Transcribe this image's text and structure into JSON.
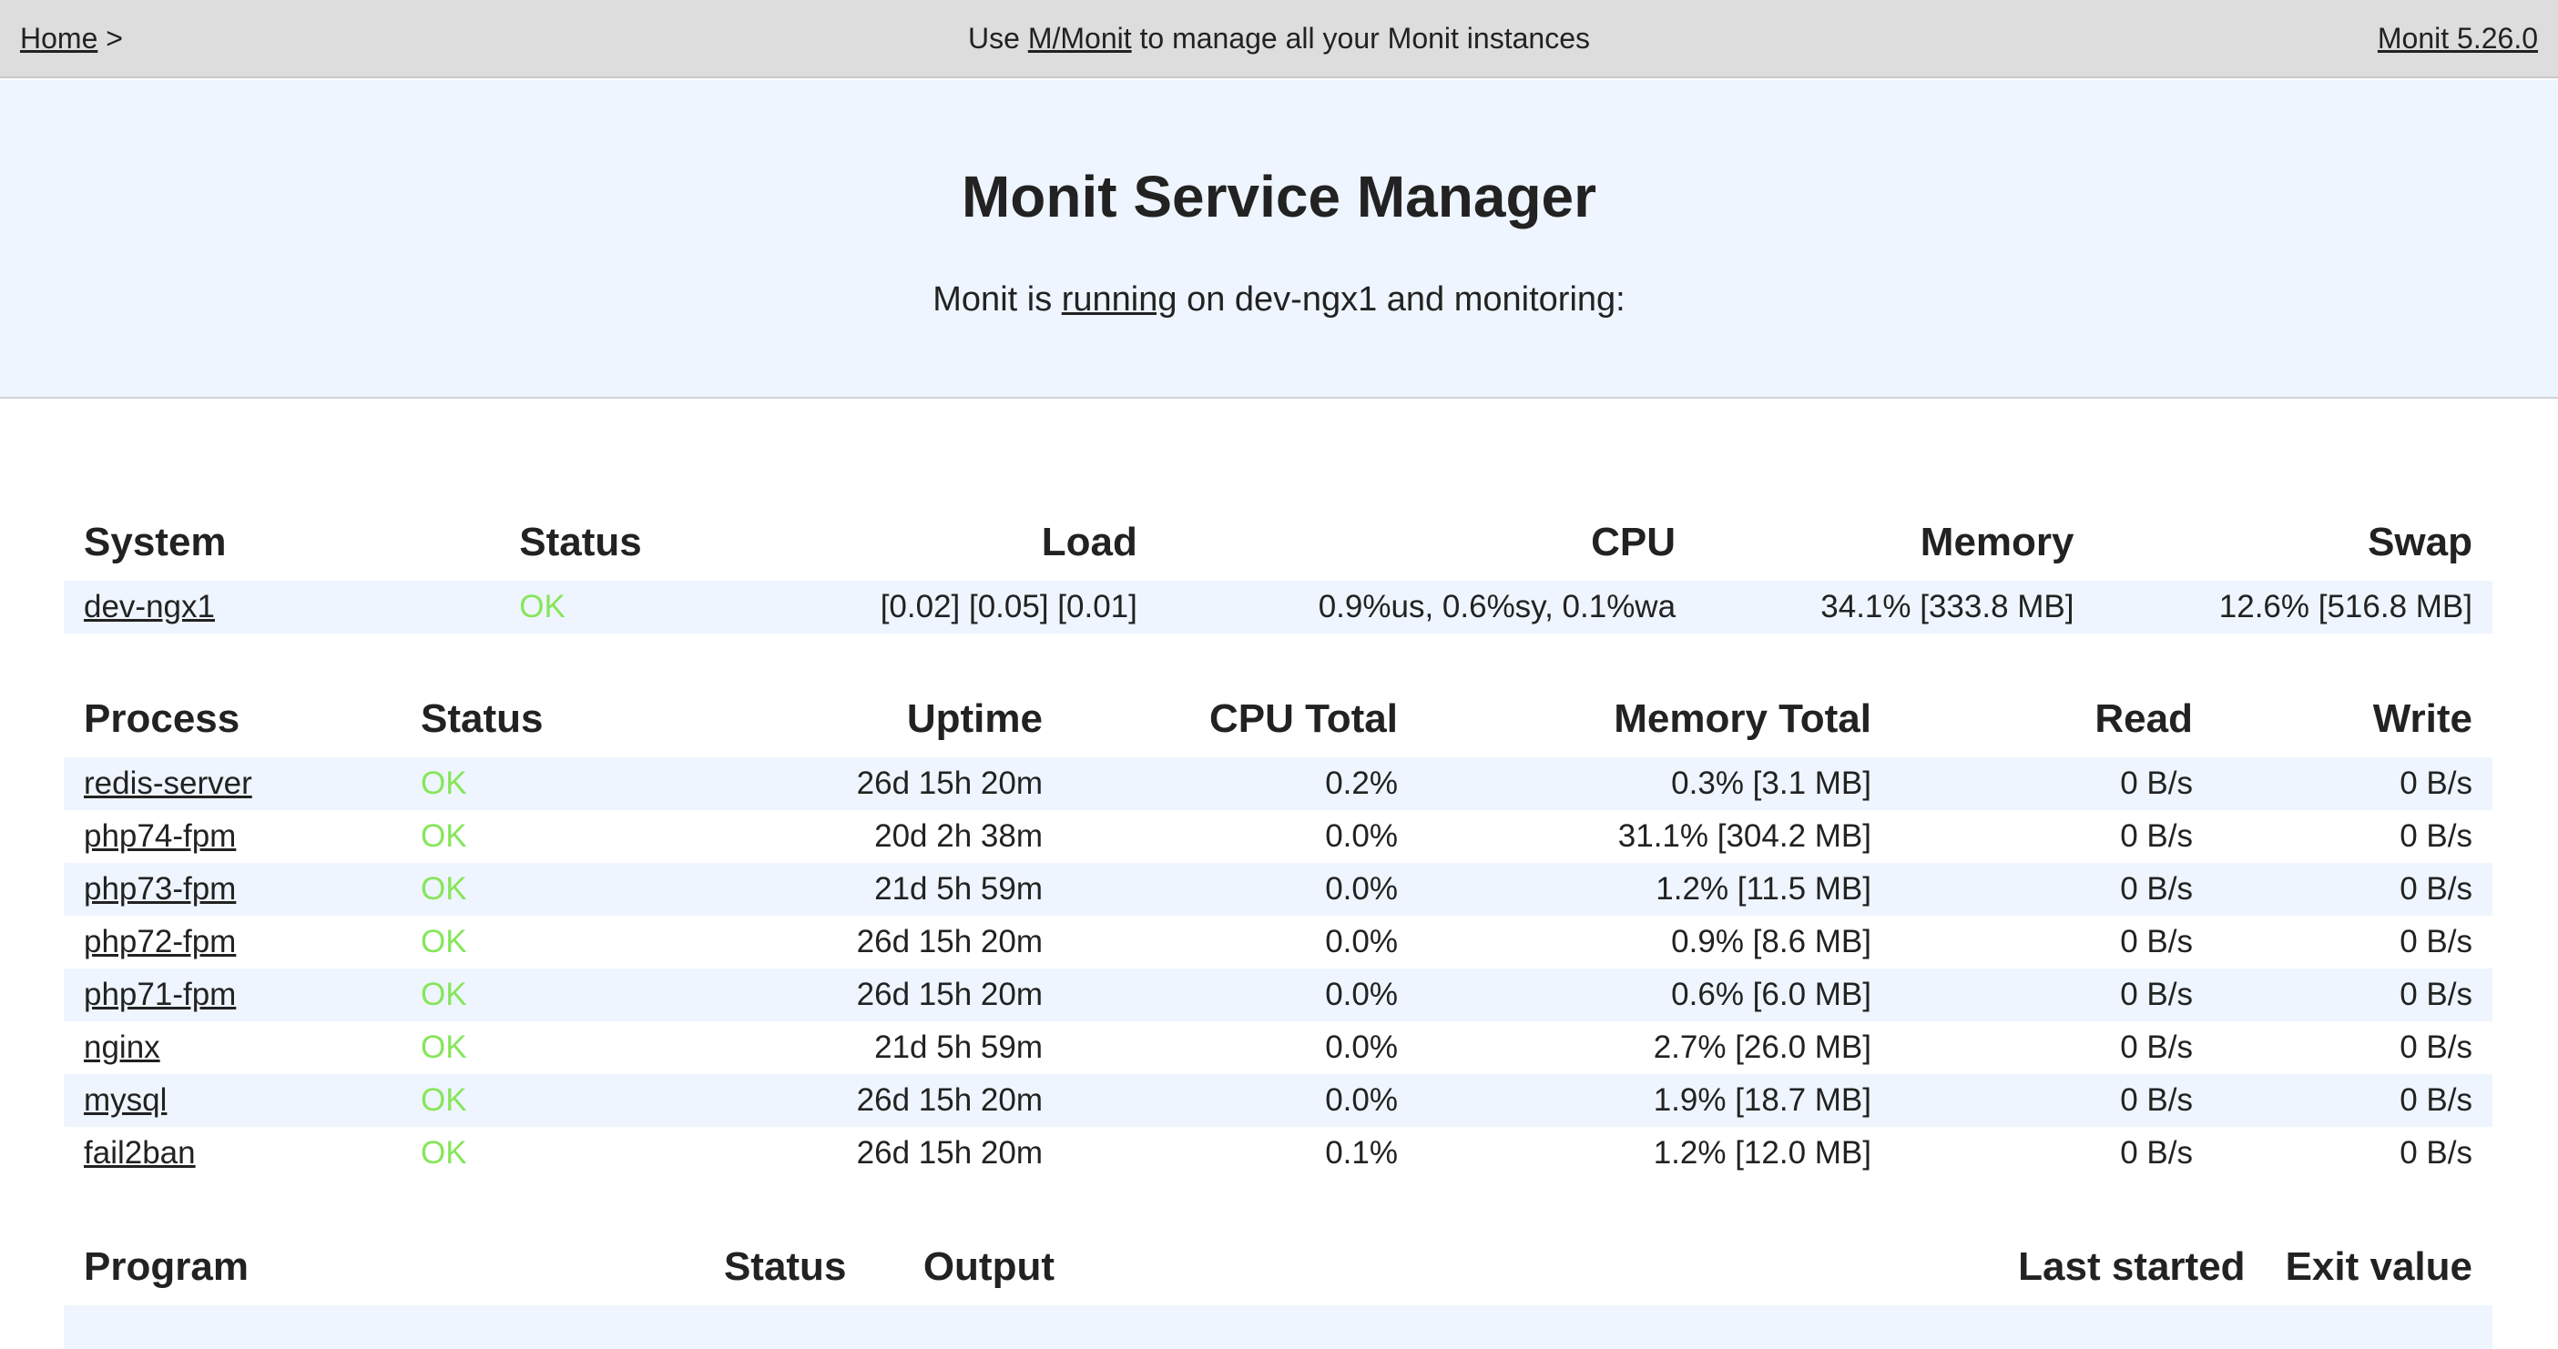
{
  "topbar": {
    "home_label": "Home",
    "breadcrumb_sep": ">",
    "promo_prefix": "Use",
    "promo_link": "M/Monit",
    "promo_suffix": "to manage all your Monit instances",
    "version": "Monit 5.26.0"
  },
  "header": {
    "title": "Monit Service Manager",
    "sub_prefix": "Monit is",
    "sub_link": "running",
    "sub_suffix": "on dev-ngx1 and monitoring:"
  },
  "system": {
    "headers": [
      "System",
      "Status",
      "Load",
      "CPU",
      "Memory",
      "Swap"
    ],
    "rows": [
      {
        "name": "dev-ngx1",
        "status": "OK",
        "load": "[0.02] [0.05] [0.01]",
        "cpu": "0.9%us, 0.6%sy, 0.1%wa",
        "memory": "34.1% [333.8 MB]",
        "swap": "12.6% [516.8 MB]"
      }
    ]
  },
  "process": {
    "headers": [
      "Process",
      "Status",
      "Uptime",
      "CPU Total",
      "Memory Total",
      "Read",
      "Write"
    ],
    "rows": [
      {
        "name": "redis-server",
        "status": "OK",
        "uptime": "26d 15h 20m",
        "cpu": "0.2%",
        "memory": "0.3% [3.1 MB]",
        "read": "0 B/s",
        "write": "0 B/s"
      },
      {
        "name": "php74-fpm",
        "status": "OK",
        "uptime": "20d 2h 38m",
        "cpu": "0.0%",
        "memory": "31.1% [304.2 MB]",
        "read": "0 B/s",
        "write": "0 B/s"
      },
      {
        "name": "php73-fpm",
        "status": "OK",
        "uptime": "21d 5h 59m",
        "cpu": "0.0%",
        "memory": "1.2% [11.5 MB]",
        "read": "0 B/s",
        "write": "0 B/s"
      },
      {
        "name": "php72-fpm",
        "status": "OK",
        "uptime": "26d 15h 20m",
        "cpu": "0.0%",
        "memory": "0.9% [8.6 MB]",
        "read": "0 B/s",
        "write": "0 B/s"
      },
      {
        "name": "php71-fpm",
        "status": "OK",
        "uptime": "26d 15h 20m",
        "cpu": "0.0%",
        "memory": "0.6% [6.0 MB]",
        "read": "0 B/s",
        "write": "0 B/s"
      },
      {
        "name": "nginx",
        "status": "OK",
        "uptime": "21d 5h 59m",
        "cpu": "0.0%",
        "memory": "2.7% [26.0 MB]",
        "read": "0 B/s",
        "write": "0 B/s"
      },
      {
        "name": "mysql",
        "status": "OK",
        "uptime": "26d 15h 20m",
        "cpu": "0.0%",
        "memory": "1.9% [18.7 MB]",
        "read": "0 B/s",
        "write": "0 B/s"
      },
      {
        "name": "fail2ban",
        "status": "OK",
        "uptime": "26d 15h 20m",
        "cpu": "0.1%",
        "memory": "1.2% [12.0 MB]",
        "read": "0 B/s",
        "write": "0 B/s"
      }
    ]
  },
  "program": {
    "headers": [
      "Program",
      "Status",
      "Output",
      "Last started",
      "Exit value"
    ]
  },
  "colors": {
    "status_ok": "#86e65a",
    "row_stripe": "#eef5fe",
    "topbar_bg": "#dddddd"
  }
}
